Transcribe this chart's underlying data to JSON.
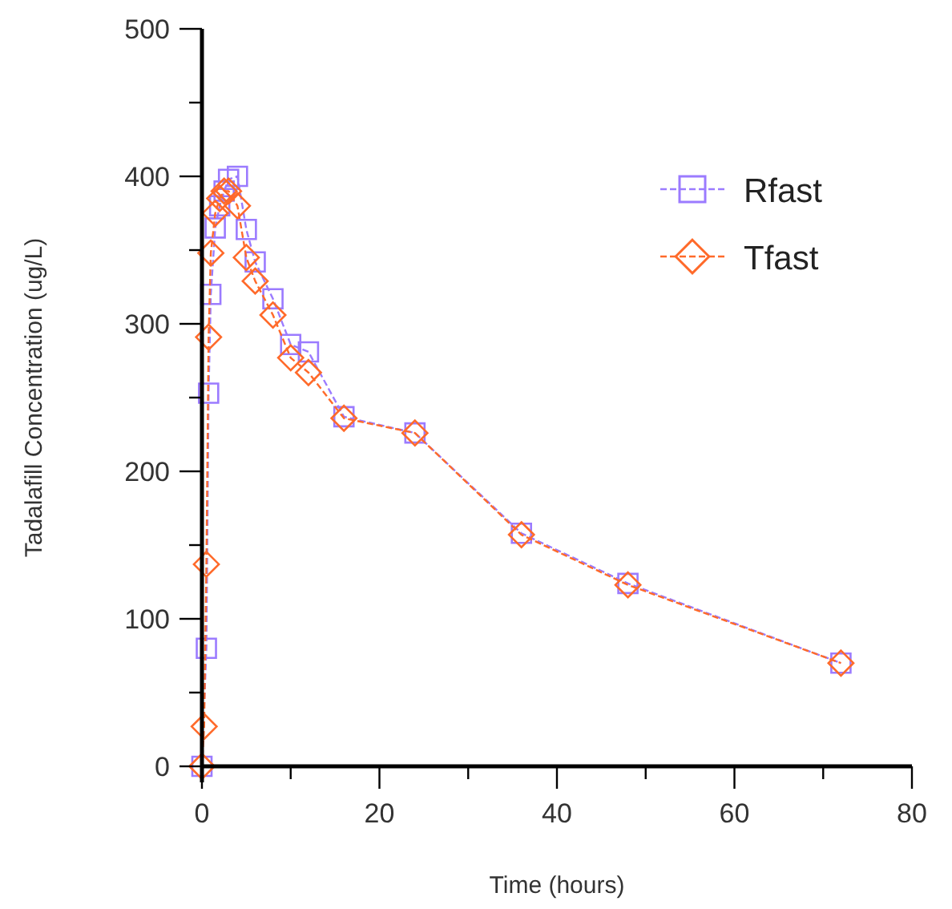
{
  "chart_data": {
    "type": "line",
    "xlabel": "Time (hours)",
    "ylabel": "Tadalafill Concentration (ug/L)",
    "xlim": [
      0,
      80
    ],
    "xticks": [
      0,
      {
        "value": 10,
        "label": null
      },
      20,
      {
        "value": 30,
        "label": null
      },
      40,
      {
        "value": 50,
        "label": null
      },
      60,
      {
        "value": 70,
        "label": null
      },
      80
    ],
    "ylim": [
      0,
      500
    ],
    "yticks": [
      0,
      {
        "value": 50,
        "label": null
      },
      100,
      {
        "value": 150,
        "label": null
      },
      200,
      {
        "value": 250,
        "label": null
      },
      300,
      {
        "value": 350,
        "label": null
      },
      400,
      {
        "value": 450,
        "label": null
      },
      500
    ],
    "grid": false,
    "legend": "top right",
    "line_style": "dashed",
    "series": [
      {
        "name": "Rfast",
        "color": "#9b7bff",
        "marker": "square",
        "x": [
          0,
          0.5,
          0.75,
          1,
          1.5,
          2,
          2.5,
          3,
          4,
          5,
          6,
          8,
          10,
          12,
          16,
          24,
          36,
          48,
          72
        ],
        "values": [
          0,
          80,
          253,
          320,
          365,
          380,
          390,
          398,
          400,
          364,
          342,
          317,
          286,
          281,
          237,
          226,
          158,
          124,
          70
        ]
      },
      {
        "name": "Tfast",
        "color": "#ff6a2a",
        "marker": "diamond",
        "x": [
          0,
          0.25,
          0.5,
          0.75,
          1,
          1.5,
          2,
          2.5,
          3,
          4,
          5,
          6,
          8,
          10,
          12,
          16,
          24,
          36,
          48,
          72
        ],
        "values": [
          0,
          27,
          137,
          291,
          348,
          375,
          385,
          390,
          390,
          380,
          345,
          329,
          306,
          277,
          267,
          236,
          226,
          157,
          123,
          70
        ]
      }
    ]
  }
}
